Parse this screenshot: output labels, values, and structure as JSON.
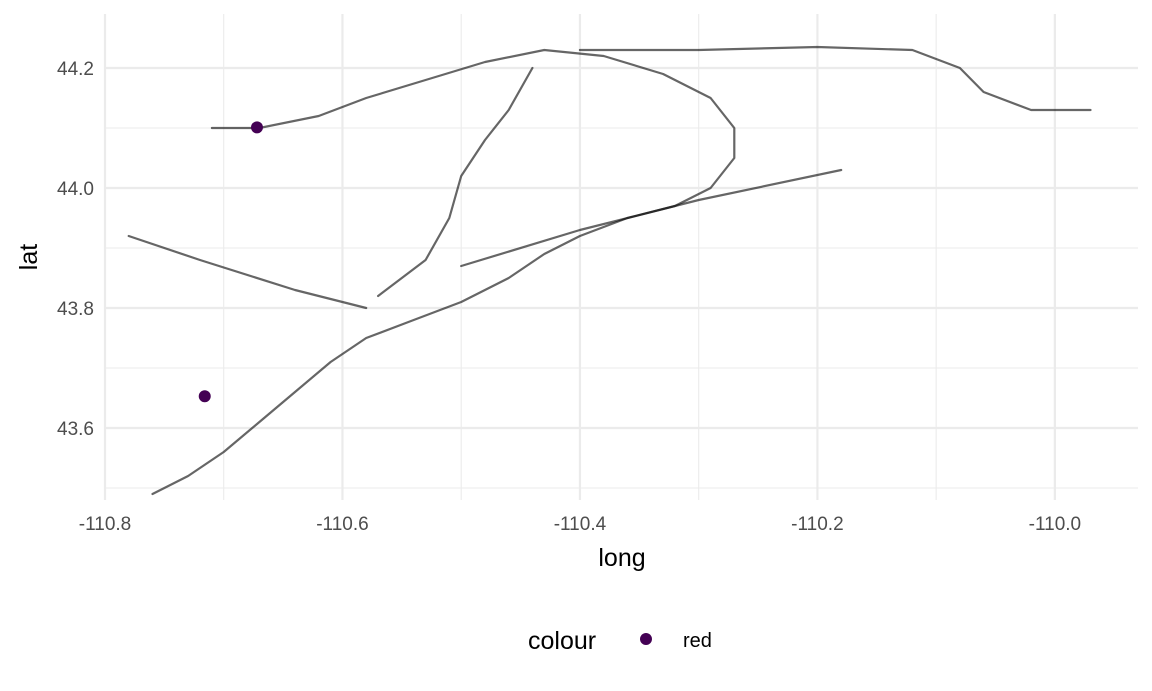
{
  "chart_data": {
    "type": "line",
    "xlabel": "long",
    "ylabel": "lat",
    "xlim": [
      -110.8,
      -109.93
    ],
    "ylim": [
      43.48,
      44.29
    ],
    "x_ticks": [
      -110.8,
      -110.6,
      -110.4,
      -110.2,
      -110.0
    ],
    "x_tick_labels": [
      "-110.8",
      "-110.6",
      "-110.4",
      "-110.2",
      "-110.0"
    ],
    "y_ticks": [
      43.6,
      43.8,
      44.0,
      44.2
    ],
    "y_tick_labels": [
      "43.6",
      "43.8",
      "44.0",
      "44.2"
    ],
    "grid": true,
    "series": [
      {
        "values": [
          {
            "x": -110.76,
            "y": 43.49
          },
          {
            "x": -110.73,
            "y": 43.52
          },
          {
            "x": -110.7,
            "y": 43.56
          },
          {
            "x": -110.67,
            "y": 43.61
          },
          {
            "x": -110.64,
            "y": 43.66
          },
          {
            "x": -110.61,
            "y": 43.71
          },
          {
            "x": -110.58,
            "y": 43.75
          },
          {
            "x": -110.54,
            "y": 43.78
          },
          {
            "x": -110.5,
            "y": 43.81
          },
          {
            "x": -110.46,
            "y": 43.85
          },
          {
            "x": -110.43,
            "y": 43.89
          },
          {
            "x": -110.4,
            "y": 43.92
          },
          {
            "x": -110.36,
            "y": 43.95
          },
          {
            "x": -110.32,
            "y": 43.97
          },
          {
            "x": -110.29,
            "y": 44.0
          },
          {
            "x": -110.27,
            "y": 44.05
          },
          {
            "x": -110.27,
            "y": 44.1
          },
          {
            "x": -110.29,
            "y": 44.15
          },
          {
            "x": -110.33,
            "y": 44.19
          },
          {
            "x": -110.38,
            "y": 44.22
          },
          {
            "x": -110.43,
            "y": 44.23
          },
          {
            "x": -110.48,
            "y": 44.21
          },
          {
            "x": -110.53,
            "y": 44.18
          },
          {
            "x": -110.58,
            "y": 44.15
          },
          {
            "x": -110.62,
            "y": 44.12
          },
          {
            "x": -110.67,
            "y": 44.1
          },
          {
            "x": -110.71,
            "y": 44.1
          }
        ]
      },
      {
        "values": [
          {
            "x": -110.4,
            "y": 44.23
          },
          {
            "x": -110.3,
            "y": 44.23
          },
          {
            "x": -110.2,
            "y": 44.235
          },
          {
            "x": -110.12,
            "y": 44.23
          },
          {
            "x": -110.08,
            "y": 44.2
          },
          {
            "x": -110.06,
            "y": 44.16
          },
          {
            "x": -110.02,
            "y": 44.13
          },
          {
            "x": -109.97,
            "y": 44.13
          }
        ]
      },
      {
        "values": [
          {
            "x": -110.78,
            "y": 43.92
          },
          {
            "x": -110.72,
            "y": 43.88
          },
          {
            "x": -110.64,
            "y": 43.83
          },
          {
            "x": -110.58,
            "y": 43.8
          }
        ]
      },
      {
        "values": [
          {
            "x": -110.5,
            "y": 43.87
          },
          {
            "x": -110.4,
            "y": 43.93
          },
          {
            "x": -110.3,
            "y": 43.98
          },
          {
            "x": -110.18,
            "y": 44.03
          }
        ]
      },
      {
        "values": [
          {
            "x": -110.57,
            "y": 43.82
          },
          {
            "x": -110.53,
            "y": 43.88
          },
          {
            "x": -110.51,
            "y": 43.95
          },
          {
            "x": -110.5,
            "y": 44.02
          },
          {
            "x": -110.48,
            "y": 44.08
          },
          {
            "x": -110.46,
            "y": 44.13
          },
          {
            "x": -110.44,
            "y": 44.2
          }
        ]
      }
    ],
    "points": [
      {
        "x": -110.716,
        "y": 43.653,
        "series": "red"
      },
      {
        "x": -110.672,
        "y": 44.101,
        "series": "red"
      }
    ],
    "legend": {
      "title": "colour",
      "position": "bottom",
      "entries": [
        {
          "label": "red",
          "color": "#440154"
        }
      ]
    }
  },
  "colors": {
    "path": "#000000",
    "point": "#440154",
    "grid": "#ebebeb",
    "background": "#ffffff"
  }
}
